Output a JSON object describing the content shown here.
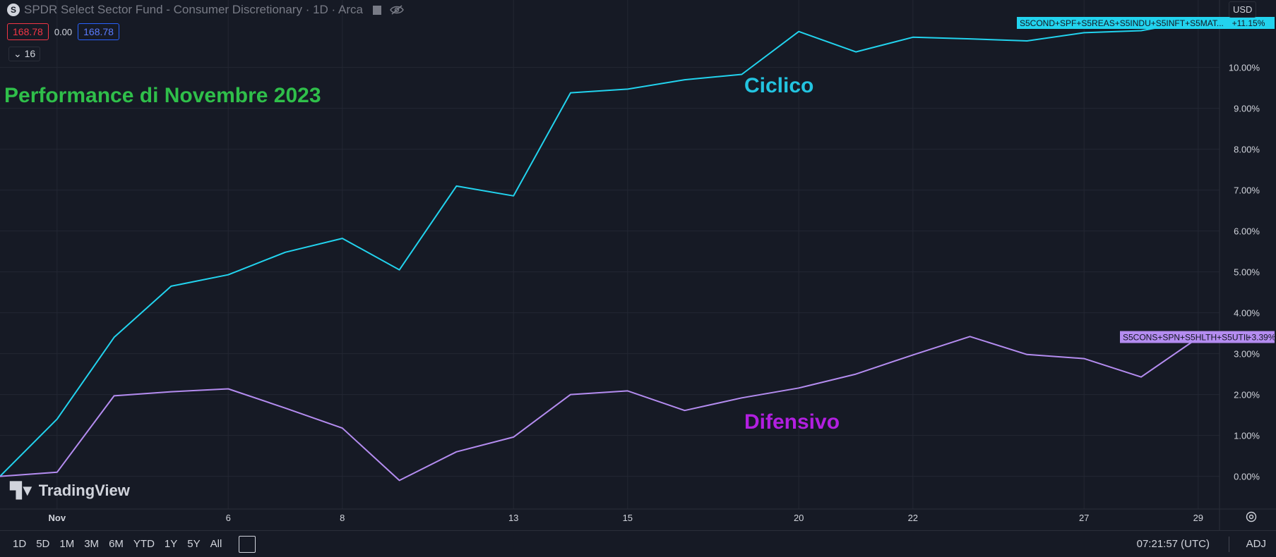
{
  "header": {
    "logo_letter": "S",
    "title": "SPDR Select Sector Fund - Consumer Discretionary · 1D · Arca",
    "val_left": "168.78",
    "val_mid": "0.00",
    "val_right": "168.78",
    "collapse_count": "16"
  },
  "currency": "USD",
  "watermark": "TradingView",
  "bottom": {
    "ranges": [
      "1D",
      "5D",
      "1M",
      "3M",
      "6M",
      "YTD",
      "1Y",
      "5Y",
      "All"
    ],
    "clock": "07:21:57 (UTC)",
    "adj": "ADJ"
  },
  "annotations": {
    "title": "Performance di Novembre 2023",
    "title_color": "#2fbf4a",
    "cyclical": "Ciclico",
    "cyclical_color": "#23c4e0",
    "defensive": "Difensivo",
    "defensive_color": "#b21fe0"
  },
  "chart_data": {
    "type": "line",
    "x_ticks": [
      "Nov",
      "6",
      "8",
      "13",
      "15",
      "20",
      "22",
      "27",
      "29"
    ],
    "x_tick_index": [
      1,
      4,
      6,
      9,
      11,
      14,
      16,
      19,
      21
    ],
    "ylim": [
      -0.8,
      11.65
    ],
    "y_ticks": [
      "10.00%",
      "9.00%",
      "8.00%",
      "7.00%",
      "6.00%",
      "5.00%",
      "4.00%",
      "3.00%",
      "2.00%",
      "1.00%",
      "0.00%"
    ],
    "grid": true,
    "series": [
      {
        "name": "S5COND+SPF+S5REAS+S5INDU+S5INFT+S5MAT...",
        "color": "#22d3ee",
        "values": [
          0,
          1.4,
          3.4,
          4.65,
          4.93,
          5.48,
          5.82,
          5.05,
          7.1,
          6.86,
          9.38,
          9.47,
          9.7,
          9.83,
          10.88,
          10.38,
          10.74,
          10.7,
          10.65,
          10.85,
          10.9,
          11.15
        ],
        "last_label": "+11.15%"
      },
      {
        "name": "S5CONS+SPN+S5HLTH+S5UTIL",
        "color": "#b48cf0",
        "values": [
          0,
          0.1,
          1.97,
          2.07,
          2.14,
          1.67,
          1.18,
          -0.1,
          0.6,
          0.96,
          2.0,
          2.09,
          1.61,
          1.92,
          2.16,
          2.5,
          2.97,
          3.42,
          2.98,
          2.88,
          2.43,
          3.39
        ],
        "last_label": "+3.39%"
      }
    ]
  }
}
